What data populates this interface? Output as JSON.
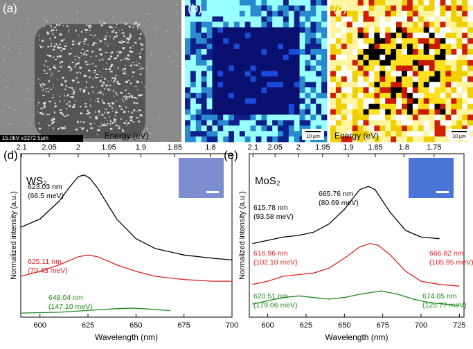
{
  "images": [
    {
      "label": "(a)",
      "caption": "15.0kV x3272  5µm"
    },
    {
      "label": "(b)",
      "caption": "10 µm"
    },
    {
      "label": "(c)",
      "caption": "10 µm"
    }
  ],
  "chart_data": [
    {
      "type": "line",
      "panel": "(d)",
      "sample": "WS₂",
      "xlabel": "Wavelength (nm)",
      "x2label": "Energy (eV)",
      "ylabel": "Normalized intensity (a.u.)",
      "xlim": [
        590,
        700
      ],
      "xticks": [
        600,
        625,
        650,
        675,
        700
      ],
      "ylim": [
        0,
        1
      ],
      "x2ticks": [
        2.1,
        2.05,
        2,
        1.95,
        1.9,
        1.85,
        1.8
      ],
      "series": [
        {
          "color": "#000000",
          "x": [
            590,
            600,
            610,
            615,
            620,
            623.03,
            626,
            630,
            640,
            650,
            660,
            675,
            690,
            700
          ],
          "values": [
            0.55,
            0.6,
            0.71,
            0.79,
            0.86,
            0.87,
            0.85,
            0.79,
            0.6,
            0.48,
            0.42,
            0.38,
            0.36,
            0.35
          ]
        },
        {
          "color": "#e02020",
          "x": [
            590,
            600,
            610,
            620,
            625.11,
            630,
            640,
            650,
            660,
            675,
            690,
            700
          ],
          "values": [
            0.25,
            0.28,
            0.32,
            0.37,
            0.38,
            0.37,
            0.32,
            0.28,
            0.25,
            0.23,
            0.22,
            0.22
          ]
        },
        {
          "color": "#1a8a1a",
          "x": [
            590,
            610,
            630,
            640,
            648.04,
            656,
            668
          ],
          "values": [
            0.025,
            0.03,
            0.045,
            0.052,
            0.055,
            0.05,
            0.04
          ]
        }
      ],
      "annotations": [
        {
          "color": "#000000",
          "lines": [
            "623.03 nm",
            "(66.5 meV)"
          ]
        },
        {
          "color": "#e02020",
          "lines": [
            "625.11 nm",
            "(70.43 meV)"
          ]
        },
        {
          "color": "#1a8a1a",
          "lines": [
            "648.04 nm",
            "(147.10 meV)"
          ]
        }
      ]
    },
    {
      "type": "line",
      "panel": "(e)",
      "sample": "MoS₂",
      "xlabel": "Wavelength (nm)",
      "x2label": "Energy (eV)",
      "ylabel": "Normalized intensity (a.u.)",
      "xlim": [
        588,
        728
      ],
      "xticks": [
        600,
        625,
        650,
        675,
        700,
        725
      ],
      "ylim": [
        0,
        1
      ],
      "x2ticks": [
        2.1,
        2.05,
        2,
        1.95,
        1.9,
        1.85,
        1.8,
        1.75
      ],
      "series": [
        {
          "color": "#000000",
          "x": [
            590,
            600,
            610,
            620,
            630,
            640,
            650,
            660,
            665.76,
            670,
            680,
            690,
            700,
            712
          ],
          "values": [
            0.45,
            0.47,
            0.49,
            0.5,
            0.52,
            0.57,
            0.66,
            0.78,
            0.8,
            0.78,
            0.64,
            0.53,
            0.49,
            0.48
          ]
        },
        {
          "color": "#e02020",
          "x": [
            590,
            600,
            610,
            620,
            630,
            640,
            650,
            660,
            666.82,
            672,
            680,
            690,
            700,
            712,
            725
          ],
          "values": [
            0.2,
            0.22,
            0.25,
            0.26,
            0.27,
            0.3,
            0.36,
            0.43,
            0.45,
            0.44,
            0.38,
            0.28,
            0.22,
            0.2,
            0.19
          ]
        },
        {
          "color": "#1a8a1a",
          "x": [
            590,
            600,
            610,
            620.51,
            630,
            640,
            650,
            660,
            674.05,
            685,
            695,
            705,
            715,
            725
          ],
          "values": [
            0.08,
            0.1,
            0.12,
            0.13,
            0.12,
            0.11,
            0.12,
            0.14,
            0.16,
            0.14,
            0.11,
            0.09,
            0.08,
            0.07
          ]
        }
      ],
      "annotations": [
        {
          "color": "#000000",
          "lines": [
            "615.78 nm",
            "(93.58 meV)"
          ]
        },
        {
          "color": "#000000",
          "lines": [
            "665.76 nm",
            "(80.69 meV)"
          ]
        },
        {
          "color": "#e02020",
          "lines": [
            "616.96 nm",
            "(102.10 meV)"
          ]
        },
        {
          "color": "#e02020",
          "lines": [
            "666.82 nm",
            "(105.95 meV)"
          ]
        },
        {
          "color": "#1a8a1a",
          "lines": [
            "620.51 nm",
            "(179.06 meV)"
          ]
        },
        {
          "color": "#1a8a1a",
          "lines": [
            "674.05 nm",
            "(125.77 meV)"
          ]
        }
      ]
    }
  ]
}
